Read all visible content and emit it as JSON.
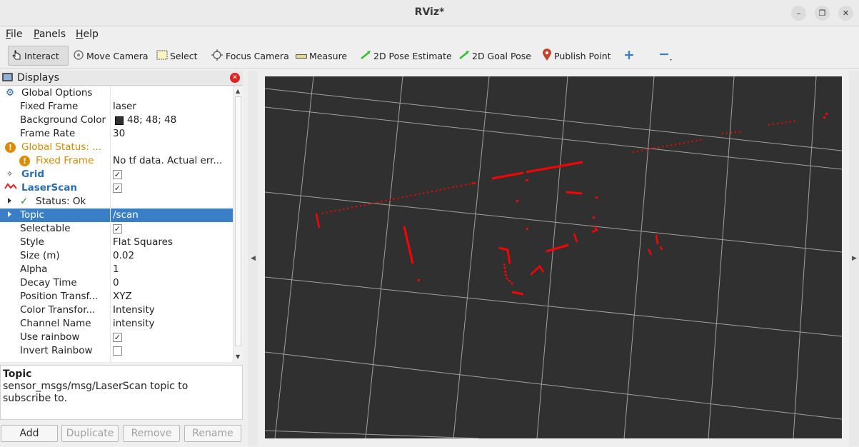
{
  "window": {
    "title": "RViz*",
    "minimize_icon": "minimize-icon",
    "maximize_icon": "maximize-icon",
    "close_icon": "close-icon"
  },
  "menu": [
    {
      "label": "File",
      "mnemonic": "F",
      "rest": "ile"
    },
    {
      "label": "Panels",
      "mnemonic": "P",
      "rest": "anels"
    },
    {
      "label": "Help",
      "mnemonic": "H",
      "rest": "elp"
    }
  ],
  "toolbar": {
    "interact": "Interact",
    "move_camera": "Move Camera",
    "select": "Select",
    "focus_camera": "Focus Camera",
    "measure": "Measure",
    "pose_estimate": "2D Pose Estimate",
    "goal_pose": "2D Goal Pose",
    "publish_point": "Publish Point"
  },
  "displays": {
    "title": "Displays",
    "rows": [
      {
        "key": "Global Options",
        "value": ""
      },
      {
        "key": "Fixed Frame",
        "value": "laser"
      },
      {
        "key": "Background Color",
        "value": "48; 48; 48"
      },
      {
        "key": "Frame Rate",
        "value": "30"
      },
      {
        "key": "Global Status: ...",
        "value": ""
      },
      {
        "key": "Fixed Frame",
        "value": "No tf data.  Actual err..."
      },
      {
        "key": "Grid",
        "value": ""
      },
      {
        "key": "LaserScan",
        "value": ""
      },
      {
        "key": "Status: Ok",
        "value": ""
      },
      {
        "key": "Topic",
        "value": "/scan"
      },
      {
        "key": "Selectable",
        "value": ""
      },
      {
        "key": "Style",
        "value": "Flat Squares"
      },
      {
        "key": "Size (m)",
        "value": "0.02"
      },
      {
        "key": "Alpha",
        "value": "1"
      },
      {
        "key": "Decay Time",
        "value": "0"
      },
      {
        "key": "Position Transf...",
        "value": "XYZ"
      },
      {
        "key": "Color Transfor...",
        "value": "Intensity"
      },
      {
        "key": "Channel Name",
        "value": "intensity"
      },
      {
        "key": "Use rainbow",
        "value": ""
      },
      {
        "key": "Invert Rainbow",
        "value": ""
      }
    ],
    "checks": {
      "grid": true,
      "laserscan": true,
      "selectable": true,
      "use_rainbow": true,
      "invert_rainbow": false
    }
  },
  "help": {
    "title": "Topic",
    "description": "sensor_msgs/msg/LaserScan topic to subscribe to."
  },
  "buttons": {
    "add": "Add",
    "duplicate": "Duplicate",
    "remove": "Remove",
    "rename": "Rename"
  },
  "colors": {
    "background": "#303030",
    "grid": "#a0a0a0",
    "scan": "#ff0000",
    "selection": "#3a7ec6",
    "warning": "#d08a00",
    "link_blue": "#2a6db5"
  }
}
